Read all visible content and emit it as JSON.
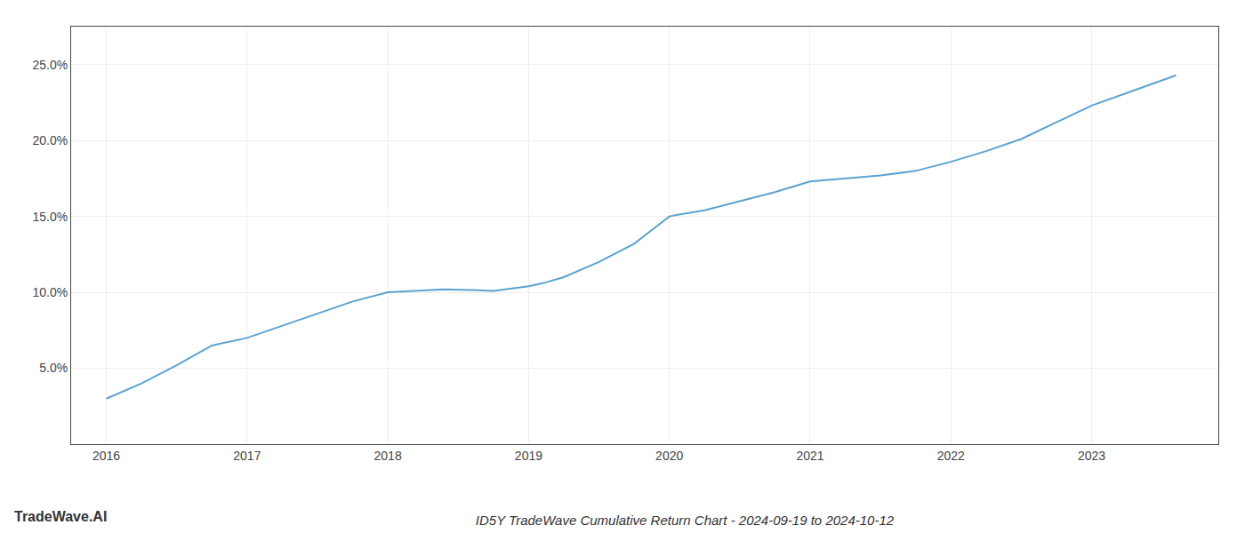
{
  "chart_data": {
    "type": "line",
    "title": "ID5Y TradeWave Cumulative Return Chart - 2024-09-19 to 2024-10-12",
    "annotations": [
      "TradeWave.AI"
    ],
    "x": [
      2016.0,
      2016.25,
      2016.5,
      2016.75,
      2017.0,
      2017.25,
      2017.5,
      2017.75,
      2018.0,
      2018.25,
      2018.4,
      2018.6,
      2018.75,
      2019.0,
      2019.1,
      2019.25,
      2019.5,
      2019.75,
      2020.0,
      2020.05,
      2020.25,
      2020.5,
      2020.75,
      2021.0,
      2021.25,
      2021.5,
      2021.75,
      2022.0,
      2022.25,
      2022.5,
      2022.75,
      2023.0,
      2023.6
    ],
    "values": [
      3.0,
      4.0,
      5.2,
      6.5,
      7.0,
      7.8,
      8.6,
      9.4,
      10.0,
      10.15,
      10.2,
      10.15,
      10.1,
      10.4,
      10.6,
      11.0,
      12.0,
      13.2,
      15.0,
      15.1,
      15.4,
      16.0,
      16.6,
      17.3,
      17.5,
      17.7,
      18.0,
      18.6,
      19.3,
      20.1,
      21.2,
      22.3,
      24.3
    ],
    "color": "#5ba3d0",
    "xlim": [
      2015.75,
      2023.9
    ],
    "ylim": [
      0.0,
      27.5
    ],
    "xticks": [
      2016,
      2017,
      2018,
      2019,
      2020,
      2021,
      2022,
      2023
    ],
    "yticks": [
      {
        "value": 5.0,
        "label": "5.0%"
      },
      {
        "value": 10.0,
        "label": "10.0%"
      },
      {
        "value": 15.0,
        "label": "15.0%"
      },
      {
        "value": 20.0,
        "label": "20.0%"
      },
      {
        "value": 25.0,
        "label": "25.0%"
      }
    ],
    "grid": true
  }
}
